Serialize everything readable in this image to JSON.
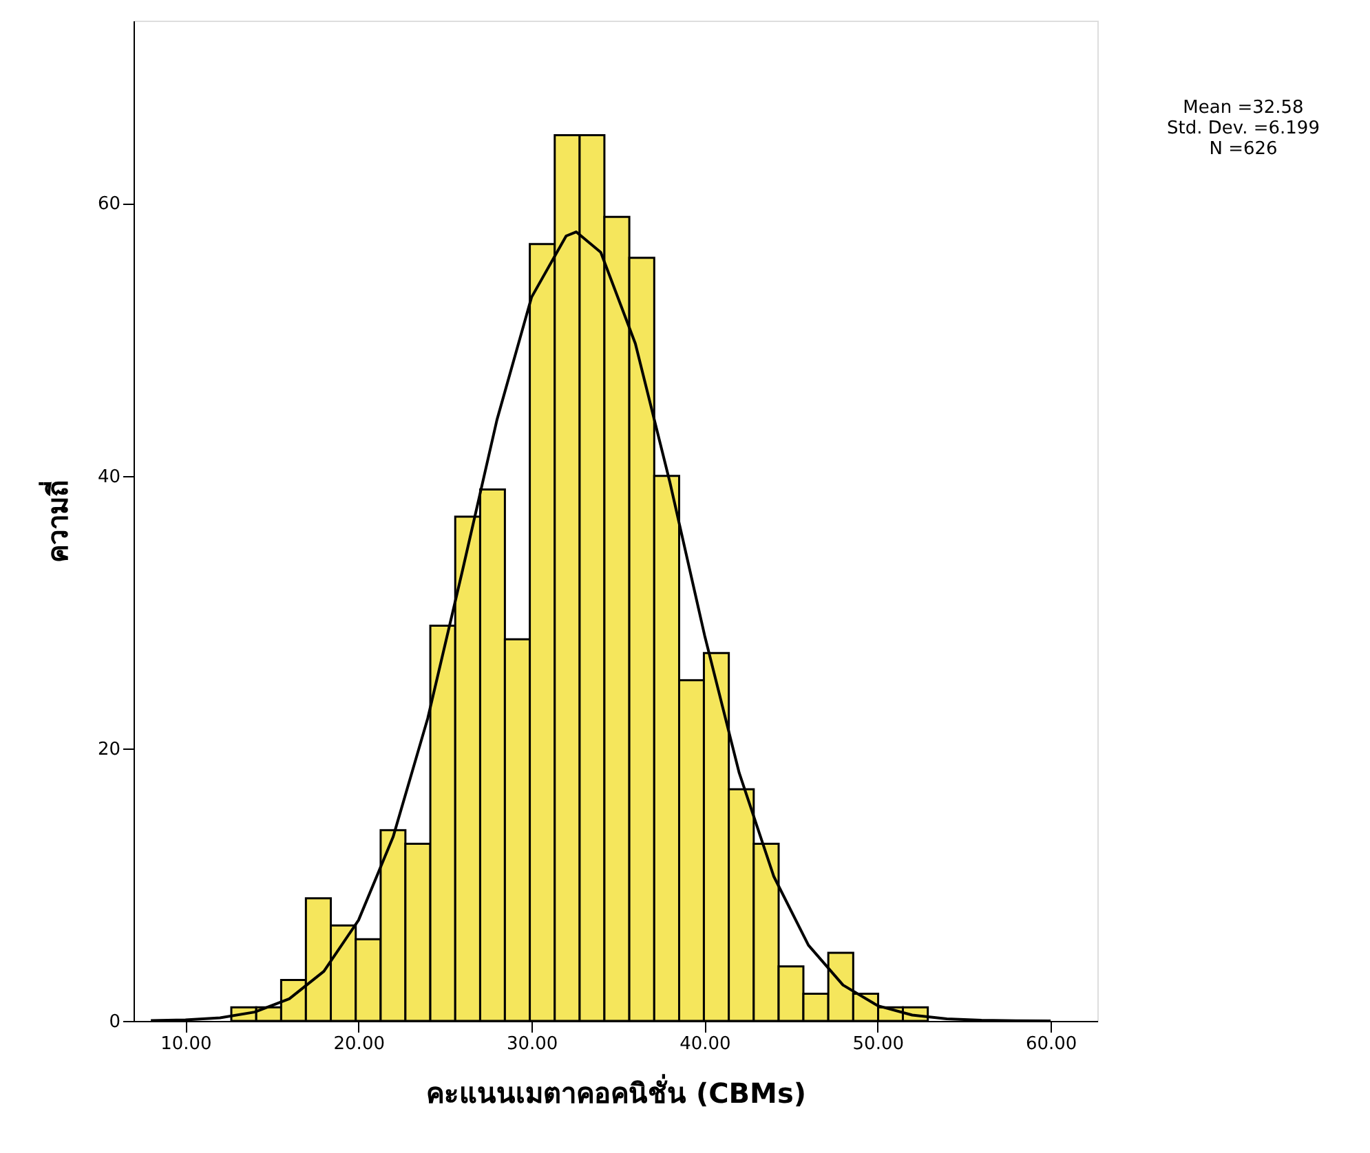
{
  "chart_data": {
    "type": "histogram",
    "xlabel": "คะแนนเมตาคอคนิชั่น (CBMs)",
    "ylabel": "ความถี่",
    "bins": [
      12.65,
      14.09,
      15.53,
      16.96,
      18.4,
      19.84,
      21.28,
      22.71,
      24.15,
      25.59,
      27.03,
      28.46,
      29.9,
      31.34,
      32.78,
      34.21,
      35.65,
      37.09,
      38.53,
      39.96,
      41.4,
      42.84,
      44.28,
      45.71,
      47.15,
      48.59,
      50.03,
      51.46,
      52.9
    ],
    "values": [
      1,
      1,
      3,
      9,
      7,
      6,
      14,
      13,
      29,
      37,
      39,
      28,
      57,
      65,
      65,
      59,
      56,
      40,
      25,
      27,
      17,
      13,
      4,
      2,
      5,
      2,
      1,
      1
    ],
    "color": "#f5e65c",
    "series": [
      {
        "type": "line",
        "color": "#000000",
        "x": [
          8,
          10,
          12,
          14,
          16,
          18,
          20,
          22,
          24,
          26,
          28,
          30,
          32,
          32.58,
          34,
          36,
          38,
          40,
          42,
          44,
          46,
          48,
          50,
          52,
          54,
          56,
          58,
          60
        ],
        "values": [
          0.02,
          0.08,
          0.23,
          0.65,
          1.62,
          3.64,
          7.39,
          13.5,
          22.2,
          33.0,
          44.1,
          53.1,
          57.6,
          57.9,
          56.4,
          49.7,
          39.5,
          28.3,
          18.2,
          10.6,
          5.56,
          2.63,
          1.12,
          0.43,
          0.15,
          0.05,
          0.01,
          0.0
        ]
      }
    ],
    "xlim": [
      7.0,
      62.7
    ],
    "ylim": [
      0,
      73.4
    ],
    "xticks": [
      {
        "value": 10,
        "label": "10.00"
      },
      {
        "value": 20,
        "label": "20.00"
      },
      {
        "value": 30,
        "label": "30.00"
      },
      {
        "value": 40,
        "label": "40.00"
      },
      {
        "value": 50,
        "label": "50.00"
      },
      {
        "value": 60,
        "label": "60.00"
      }
    ],
    "yticks": [
      0,
      20,
      40,
      60
    ],
    "annotations": [
      "Mean =32.58",
      "Std. Dev. =6.199",
      "N =626"
    ],
    "grid": false
  }
}
